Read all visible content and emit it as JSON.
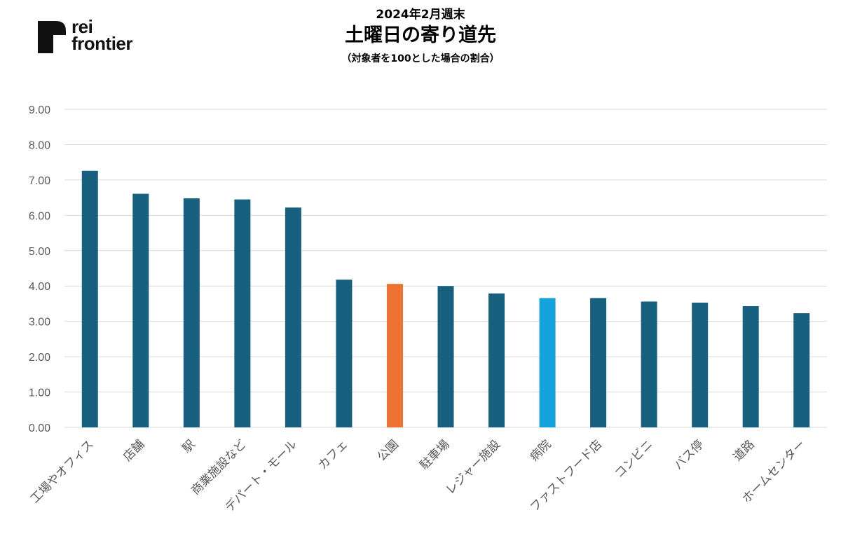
{
  "header": {
    "logo_line1": "rei",
    "logo_line2": "frontier",
    "title_line1": "2024年2月週末",
    "title_line2": "土曜日の寄り道先",
    "title_line3": "（対象者を100とした場合の割合）"
  },
  "colors": {
    "default_bar": "#17607f",
    "highlight_orange": "#ed7232",
    "highlight_blue": "#14a3dc",
    "grid": "#d9d9d9",
    "tick_text": "#595959"
  },
  "chart_data": {
    "type": "bar",
    "title": "土曜日の寄り道先",
    "subtitle": "（対象者を100とした場合の割合）",
    "categories": [
      "工場やオフィス",
      "店舗",
      "駅",
      "商業施設など",
      "デパート・モール",
      "カフェ",
      "公園",
      "駐車場",
      "レジャー施設",
      "病院",
      "ファストフード店",
      "コンビニ",
      "バス停",
      "道路",
      "ホームセンター"
    ],
    "values": [
      7.26,
      6.61,
      6.48,
      6.45,
      6.22,
      4.18,
      4.06,
      4.0,
      3.79,
      3.66,
      3.66,
      3.56,
      3.53,
      3.43,
      3.23
    ],
    "bar_colors": [
      "#17607f",
      "#17607f",
      "#17607f",
      "#17607f",
      "#17607f",
      "#17607f",
      "#ed7232",
      "#17607f",
      "#17607f",
      "#14a3dc",
      "#17607f",
      "#17607f",
      "#17607f",
      "#17607f",
      "#17607f"
    ],
    "ylim": [
      0,
      9
    ],
    "yticks": [
      "0.00",
      "1.00",
      "2.00",
      "3.00",
      "4.00",
      "5.00",
      "6.00",
      "7.00",
      "8.00",
      "9.00"
    ],
    "grid": true,
    "legend": "none"
  }
}
